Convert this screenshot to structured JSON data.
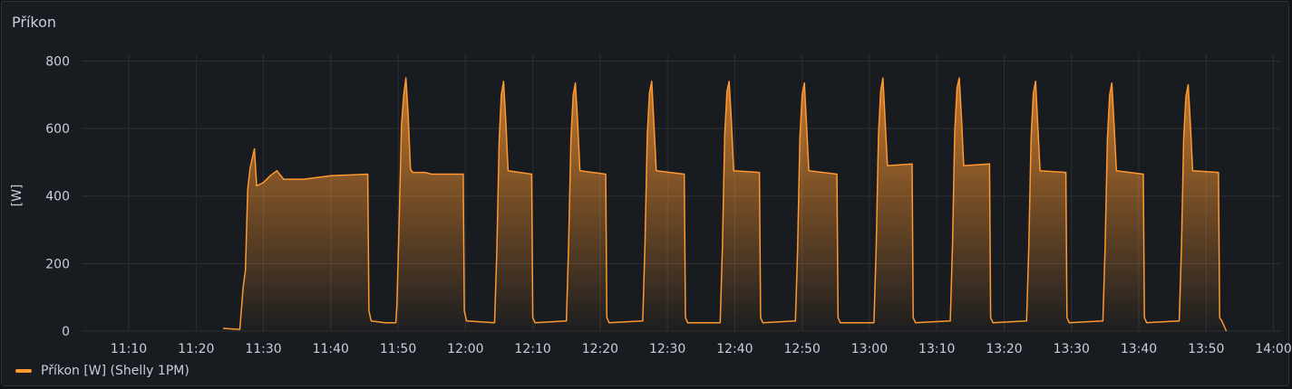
{
  "panel": {
    "title": "Příkon"
  },
  "colors": {
    "series": "#ff9830",
    "grid": "#2c3035",
    "text": "#ccccdc",
    "background": "#181b1f"
  },
  "legend": {
    "label": "Příkon [W] (Shelly 1PM)"
  },
  "chart_data": {
    "type": "area",
    "title": "Příkon",
    "xlabel": "",
    "ylabel": "[W]",
    "x_unit": "minutes since 11:00",
    "xlim": [
      "11:03",
      "14:01"
    ],
    "ylim": [
      0,
      820
    ],
    "x_ticks": [
      "11:10",
      "11:20",
      "11:30",
      "11:40",
      "11:50",
      "12:00",
      "12:10",
      "12:20",
      "12:30",
      "12:40",
      "12:50",
      "13:00",
      "13:10",
      "13:20",
      "13:30",
      "13:40",
      "13:50",
      "14:00"
    ],
    "y_ticks": [
      0,
      200,
      400,
      600,
      800
    ],
    "grid": true,
    "legend_position": "bottom-left",
    "series": [
      {
        "name": "Příkon [W] (Shelly 1PM)",
        "points": [
          [
            "11:24:00",
            8
          ],
          [
            "11:26:30",
            5
          ],
          [
            "11:27:00",
            130
          ],
          [
            "11:27:20",
            180
          ],
          [
            "11:27:40",
            420
          ],
          [
            "11:28:00",
            480
          ],
          [
            "11:28:20",
            510
          ],
          [
            "11:28:40",
            540
          ],
          [
            "11:29:00",
            430
          ],
          [
            "11:30:00",
            440
          ],
          [
            "11:31:00",
            460
          ],
          [
            "11:32:00",
            475
          ],
          [
            "11:33:00",
            450
          ],
          [
            "11:36:00",
            450
          ],
          [
            "11:40:00",
            460
          ],
          [
            "11:45:30",
            465
          ],
          [
            "11:45:40",
            60
          ],
          [
            "11:46:00",
            30
          ],
          [
            "11:48:00",
            25
          ],
          [
            "11:49:40",
            25
          ],
          [
            "11:49:50",
            80
          ],
          [
            "11:50:10",
            330
          ],
          [
            "11:50:30",
            610
          ],
          [
            "11:50:50",
            700
          ],
          [
            "11:51:10",
            750
          ],
          [
            "11:51:30",
            640
          ],
          [
            "11:51:50",
            480
          ],
          [
            "11:52:10",
            470
          ],
          [
            "11:54:00",
            470
          ],
          [
            "11:55:00",
            465
          ],
          [
            "11:59:40",
            465
          ],
          [
            "11:59:50",
            60
          ],
          [
            "12:00:10",
            30
          ],
          [
            "12:04:20",
            25
          ],
          [
            "12:04:40",
            240
          ],
          [
            "12:05:00",
            560
          ],
          [
            "12:05:20",
            700
          ],
          [
            "12:05:40",
            740
          ],
          [
            "12:06:00",
            620
          ],
          [
            "12:06:20",
            475
          ],
          [
            "12:09:50",
            465
          ],
          [
            "12:10:00",
            40
          ],
          [
            "12:10:20",
            25
          ],
          [
            "12:15:00",
            30
          ],
          [
            "12:15:20",
            260
          ],
          [
            "12:15:40",
            570
          ],
          [
            "12:16:00",
            700
          ],
          [
            "12:16:20",
            735
          ],
          [
            "12:16:40",
            620
          ],
          [
            "12:17:00",
            475
          ],
          [
            "12:20:50",
            465
          ],
          [
            "12:21:00",
            40
          ],
          [
            "12:21:20",
            25
          ],
          [
            "12:26:20",
            30
          ],
          [
            "12:26:40",
            260
          ],
          [
            "12:27:00",
            580
          ],
          [
            "12:27:20",
            705
          ],
          [
            "12:27:40",
            740
          ],
          [
            "12:28:00",
            610
          ],
          [
            "12:28:20",
            475
          ],
          [
            "12:32:30",
            465
          ],
          [
            "12:32:40",
            40
          ],
          [
            "12:33:00",
            25
          ],
          [
            "12:37:50",
            25
          ],
          [
            "12:38:10",
            250
          ],
          [
            "12:38:30",
            580
          ],
          [
            "12:38:50",
            710
          ],
          [
            "12:39:10",
            740
          ],
          [
            "12:39:30",
            620
          ],
          [
            "12:39:50",
            475
          ],
          [
            "12:43:40",
            470
          ],
          [
            "12:43:50",
            40
          ],
          [
            "12:44:10",
            25
          ],
          [
            "12:49:00",
            30
          ],
          [
            "12:49:20",
            240
          ],
          [
            "12:49:40",
            570
          ],
          [
            "12:50:00",
            700
          ],
          [
            "12:50:20",
            735
          ],
          [
            "12:50:40",
            610
          ],
          [
            "12:51:00",
            475
          ],
          [
            "12:55:10",
            465
          ],
          [
            "12:55:20",
            40
          ],
          [
            "12:55:40",
            25
          ],
          [
            "13:00:40",
            25
          ],
          [
            "13:01:00",
            250
          ],
          [
            "13:01:20",
            580
          ],
          [
            "13:01:40",
            710
          ],
          [
            "13:02:00",
            750
          ],
          [
            "13:02:20",
            620
          ],
          [
            "13:02:40",
            490
          ],
          [
            "13:06:20",
            495
          ],
          [
            "13:06:30",
            40
          ],
          [
            "13:06:50",
            25
          ],
          [
            "13:12:00",
            30
          ],
          [
            "13:12:20",
            260
          ],
          [
            "13:12:40",
            590
          ],
          [
            "13:13:00",
            720
          ],
          [
            "13:13:20",
            750
          ],
          [
            "13:13:40",
            630
          ],
          [
            "13:14:00",
            490
          ],
          [
            "13:17:50",
            495
          ],
          [
            "13:18:00",
            40
          ],
          [
            "13:18:20",
            25
          ],
          [
            "13:23:20",
            30
          ],
          [
            "13:23:40",
            250
          ],
          [
            "13:24:00",
            570
          ],
          [
            "13:24:20",
            705
          ],
          [
            "13:24:40",
            740
          ],
          [
            "13:25:00",
            610
          ],
          [
            "13:25:20",
            475
          ],
          [
            "13:29:10",
            470
          ],
          [
            "13:29:20",
            40
          ],
          [
            "13:29:40",
            25
          ],
          [
            "13:34:40",
            30
          ],
          [
            "13:35:00",
            250
          ],
          [
            "13:35:20",
            570
          ],
          [
            "13:35:40",
            700
          ],
          [
            "13:36:00",
            735
          ],
          [
            "13:36:20",
            610
          ],
          [
            "13:36:40",
            475
          ],
          [
            "13:40:40",
            465
          ],
          [
            "13:40:50",
            40
          ],
          [
            "13:41:10",
            25
          ],
          [
            "13:46:00",
            30
          ],
          [
            "13:46:20",
            250
          ],
          [
            "13:46:40",
            570
          ],
          [
            "13:47:00",
            695
          ],
          [
            "13:47:20",
            730
          ],
          [
            "13:47:40",
            610
          ],
          [
            "13:48:00",
            475
          ],
          [
            "13:51:50",
            470
          ],
          [
            "13:52:00",
            40
          ],
          [
            "13:52:20",
            30
          ],
          [
            "13:53:00",
            0
          ]
        ]
      }
    ]
  }
}
